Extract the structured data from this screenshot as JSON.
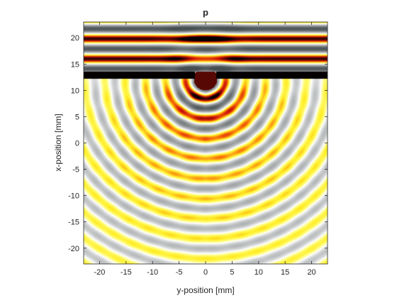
{
  "chart_data": {
    "type": "heatmap",
    "title": "p",
    "xlabel": "y-position [mm]",
    "ylabel": "x-position [mm]",
    "xlim": [
      -23,
      23
    ],
    "ylim": [
      23,
      -23
    ],
    "y_axis_reversed": true,
    "xticks": [
      -20,
      -15,
      -10,
      -5,
      0,
      5,
      10,
      15,
      20
    ],
    "yticks": [
      -20,
      -15,
      -10,
      -5,
      0,
      5,
      10,
      15,
      20
    ],
    "grid": false,
    "colormap": "hot-gray diverging (black-red-yellow-white-gray)",
    "description_values": {
      "wall_start_x_mm": 12.2,
      "slit_half_width_mm": 2,
      "wavelength_mm": 3.8
    }
  }
}
